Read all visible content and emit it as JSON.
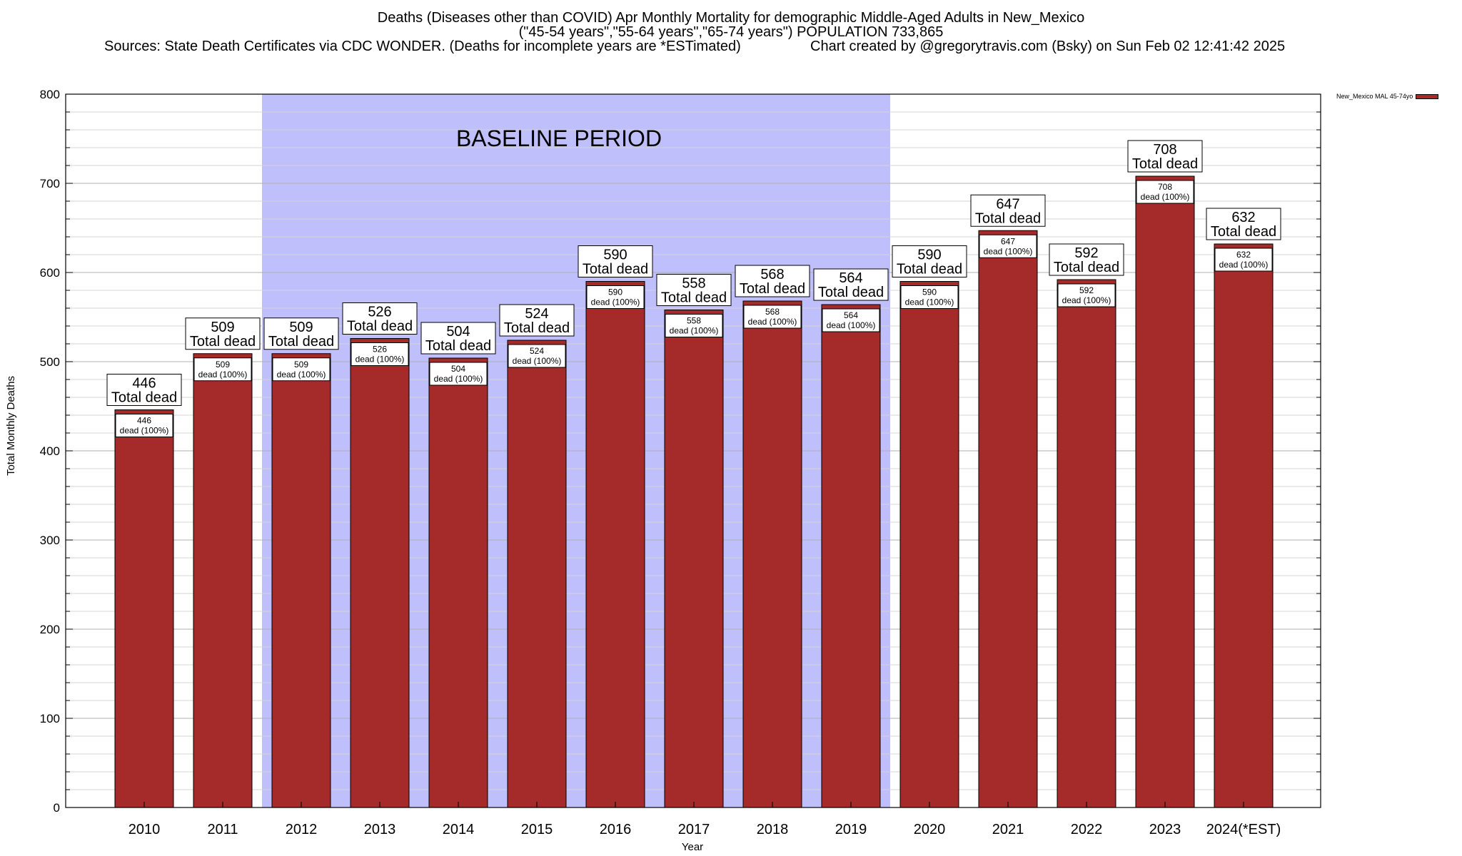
{
  "title": {
    "line1": "Deaths (Diseases other than COVID) Apr Monthly Mortality for demographic Middle-Aged Adults in New_Mexico",
    "line2": "(\"45-54 years\",\"55-64 years\",\"65-74 years\") POPULATION 733,865",
    "line3_left": "Sources: State Death Certificates via CDC WONDER. (Deaths for incomplete years are *ESTimated)",
    "line3_right": "Chart created by @gregorytravis.com (Bsky) on Sun Feb 02 12:41:42 2025"
  },
  "chart_data": {
    "type": "bar",
    "categories": [
      "2010",
      "2011",
      "2012",
      "2013",
      "2014",
      "2015",
      "2016",
      "2017",
      "2018",
      "2019",
      "2020",
      "2021",
      "2022",
      "2023",
      "2024(*EST)"
    ],
    "series": [
      {
        "name": "New_Mexico MAL 45-74yo",
        "values": [
          446,
          509,
          509,
          526,
          504,
          524,
          590,
          558,
          568,
          564,
          590,
          647,
          592,
          708,
          632
        ]
      }
    ],
    "xlabel": "Year",
    "ylabel": "Total Monthly Deaths",
    "ylim": [
      0,
      800
    ],
    "yticks": [
      0,
      100,
      200,
      300,
      400,
      500,
      600,
      700,
      800
    ],
    "minor_tick_step": 20,
    "grid": true,
    "legend_placement": "top-right-outside",
    "top_label_suffix": "Total dead",
    "inner_label_suffix": "dead (100%)",
    "annotation": {
      "text": "BASELINE PERIOD",
      "from": "2012",
      "to": "2019"
    },
    "colors": {
      "bar": "#a52a2a",
      "baseline_band": "#bfbffb"
    }
  }
}
